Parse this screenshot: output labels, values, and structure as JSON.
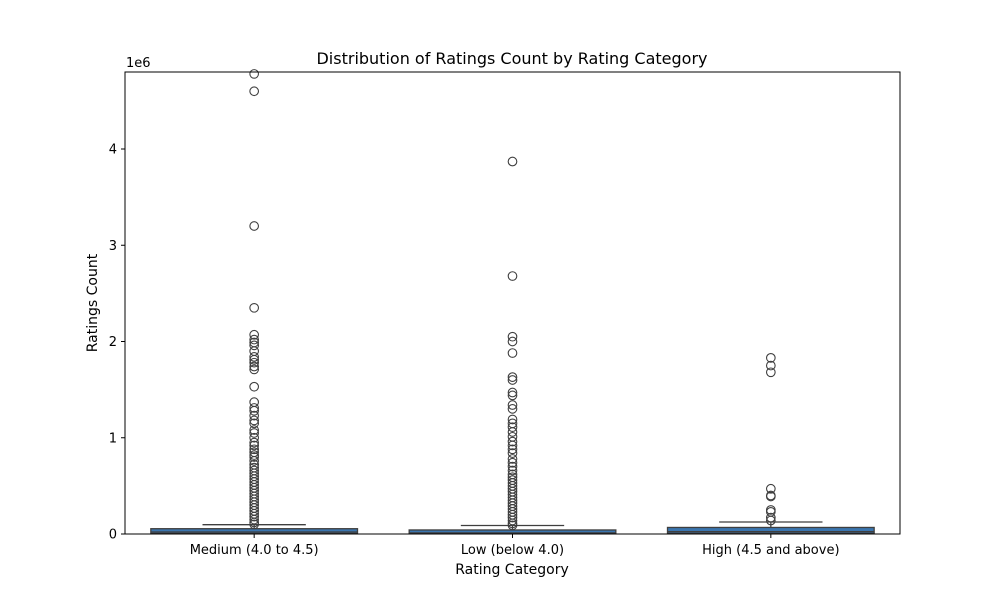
{
  "chart_data": {
    "type": "box",
    "title": "Distribution of Ratings Count by Rating Category",
    "xlabel": "Rating Category",
    "ylabel": "Ratings Count",
    "y_offset_label": "1e6",
    "ylim": [
      0,
      4800000
    ],
    "yticks": [
      0,
      1,
      2,
      3,
      4
    ],
    "box_color": "#3a75af",
    "categories": [
      "Medium (4.0 to 4.5)",
      "Low (below 4.0)",
      "High (4.5 and above)"
    ],
    "boxes": [
      {
        "category": "Medium (4.0 to 4.5)",
        "whisker_low": 0,
        "q1": 5000,
        "median": 20000,
        "q3": 55000,
        "whisker_high": 97000,
        "outliers": [
          4780000,
          4600000,
          3200000,
          2350000,
          2070000,
          2020000,
          1990000,
          1960000,
          1900000,
          1840000,
          1810000,
          1780000,
          1740000,
          1710000,
          1530000,
          1370000,
          1310000,
          1280000,
          1230000,
          1180000,
          1150000,
          1080000,
          1050000,
          1000000,
          950000,
          920000,
          880000,
          850000,
          820000,
          800000,
          760000,
          720000,
          690000,
          660000,
          630000,
          600000,
          570000,
          540000,
          510000,
          480000,
          450000,
          420000,
          390000,
          360000,
          330000,
          300000,
          270000,
          240000,
          210000,
          180000,
          150000,
          120000,
          100000
        ]
      },
      {
        "category": "Low (below 4.0)",
        "whisker_low": 0,
        "q1": 3000,
        "median": 12000,
        "q3": 42000,
        "whisker_high": 88000,
        "outliers": [
          3870000,
          2680000,
          2050000,
          2000000,
          1880000,
          1630000,
          1600000,
          1470000,
          1440000,
          1340000,
          1300000,
          1190000,
          1150000,
          1110000,
          1060000,
          1010000,
          960000,
          920000,
          880000,
          840000,
          780000,
          740000,
          700000,
          660000,
          620000,
          590000,
          560000,
          530000,
          500000,
          470000,
          440000,
          410000,
          380000,
          350000,
          320000,
          290000,
          260000,
          230000,
          200000,
          170000,
          140000,
          110000,
          90000
        ]
      },
      {
        "category": "High (4.5 and above)",
        "whisker_low": 0,
        "q1": 8000,
        "median": 25000,
        "q3": 68000,
        "whisker_high": 125000,
        "outliers": [
          1830000,
          1750000,
          1680000,
          470000,
          400000,
          390000,
          250000,
          230000,
          170000,
          140000
        ]
      }
    ]
  }
}
